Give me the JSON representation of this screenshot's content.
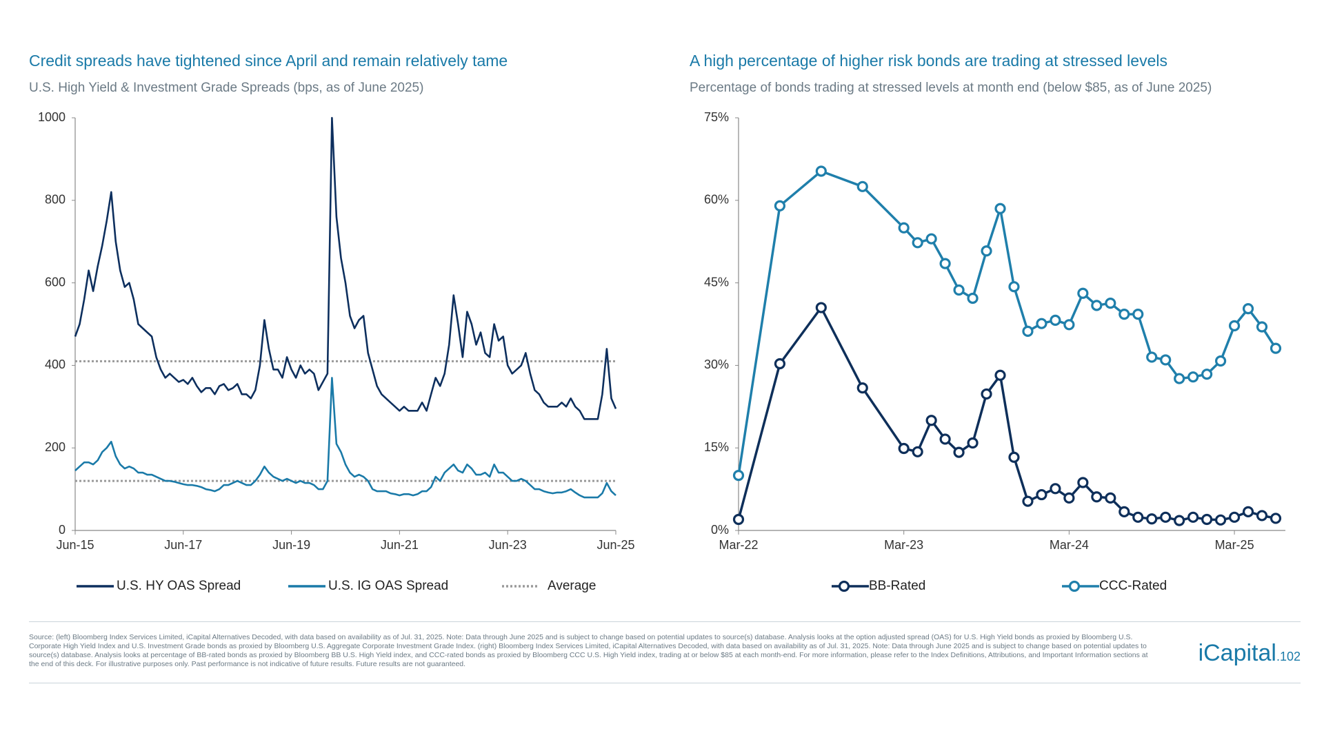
{
  "chart_data": [
    {
      "type": "line",
      "title": "Credit spreads have tightened since April and remain relatively tame",
      "subtitle": "U.S. High Yield & Investment Grade Spreads (bps, as of June 2025)",
      "x": [
        "Jun-15",
        "Jul-15",
        "Aug-15",
        "Sep-15",
        "Oct-15",
        "Nov-15",
        "Dec-15",
        "Jan-16",
        "Feb-16",
        "Mar-16",
        "Apr-16",
        "May-16",
        "Jun-16",
        "Jul-16",
        "Aug-16",
        "Sep-16",
        "Oct-16",
        "Nov-16",
        "Dec-16",
        "Jan-17",
        "Feb-17",
        "Mar-17",
        "Apr-17",
        "May-17",
        "Jun-17",
        "Jul-17",
        "Aug-17",
        "Sep-17",
        "Oct-17",
        "Nov-17",
        "Dec-17",
        "Jan-18",
        "Feb-18",
        "Mar-18",
        "Apr-18",
        "May-18",
        "Jun-18",
        "Jul-18",
        "Aug-18",
        "Sep-18",
        "Oct-18",
        "Nov-18",
        "Dec-18",
        "Jan-19",
        "Feb-19",
        "Mar-19",
        "Apr-19",
        "May-19",
        "Jun-19",
        "Jul-19",
        "Aug-19",
        "Sep-19",
        "Oct-19",
        "Nov-19",
        "Dec-19",
        "Jan-20",
        "Feb-20",
        "Mar-20",
        "Apr-20",
        "May-20",
        "Jun-20",
        "Jul-20",
        "Aug-20",
        "Sep-20",
        "Oct-20",
        "Nov-20",
        "Dec-20",
        "Jan-21",
        "Feb-21",
        "Mar-21",
        "Apr-21",
        "May-21",
        "Jun-21",
        "Jul-21",
        "Aug-21",
        "Sep-21",
        "Oct-21",
        "Nov-21",
        "Dec-21",
        "Jan-22",
        "Feb-22",
        "Mar-22",
        "Apr-22",
        "May-22",
        "Jun-22",
        "Jul-22",
        "Aug-22",
        "Sep-22",
        "Oct-22",
        "Nov-22",
        "Dec-22",
        "Jan-23",
        "Feb-23",
        "Mar-23",
        "Apr-23",
        "May-23",
        "Jun-23",
        "Jul-23",
        "Aug-23",
        "Sep-23",
        "Oct-23",
        "Nov-23",
        "Dec-23",
        "Jan-24",
        "Feb-24",
        "Mar-24",
        "Apr-24",
        "May-24",
        "Jun-24",
        "Jul-24",
        "Aug-24",
        "Sep-24",
        "Oct-24",
        "Nov-24",
        "Dec-24",
        "Jan-25",
        "Feb-25",
        "Mar-25",
        "Apr-25",
        "May-25",
        "Jun-25"
      ],
      "series": [
        {
          "name": "U.S. HY OAS Spread",
          "color": "#0d2f5e",
          "values": [
            470,
            500,
            560,
            630,
            580,
            640,
            690,
            750,
            820,
            700,
            630,
            590,
            600,
            560,
            500,
            490,
            480,
            470,
            420,
            390,
            370,
            380,
            370,
            360,
            365,
            355,
            370,
            350,
            335,
            345,
            345,
            330,
            350,
            355,
            340,
            345,
            355,
            330,
            330,
            320,
            340,
            400,
            510,
            440,
            390,
            390,
            370,
            420,
            390,
            370,
            400,
            380,
            390,
            380,
            340,
            360,
            380,
            1000,
            760,
            660,
            600,
            520,
            490,
            510,
            520,
            430,
            390,
            350,
            330,
            320,
            310,
            300,
            290,
            300,
            290,
            290,
            290,
            310,
            290,
            330,
            370,
            350,
            380,
            450,
            570,
            500,
            420,
            530,
            500,
            450,
            480,
            430,
            420,
            500,
            460,
            470,
            400,
            380,
            390,
            400,
            430,
            380,
            340,
            330,
            310,
            300,
            300,
            300,
            310,
            300,
            320,
            300,
            290,
            270,
            270,
            270,
            270,
            330,
            440,
            320,
            295
          ]
        },
        {
          "name": "U.S. IG OAS Spread",
          "color": "#1a7aa8",
          "values": [
            145,
            155,
            165,
            165,
            160,
            170,
            190,
            200,
            215,
            180,
            160,
            150,
            155,
            150,
            140,
            140,
            135,
            135,
            130,
            125,
            120,
            120,
            118,
            115,
            112,
            110,
            110,
            108,
            105,
            100,
            98,
            95,
            100,
            110,
            110,
            115,
            120,
            115,
            110,
            110,
            120,
            135,
            155,
            140,
            130,
            125,
            120,
            125,
            120,
            115,
            120,
            115,
            115,
            110,
            100,
            100,
            120,
            370,
            210,
            190,
            160,
            140,
            130,
            135,
            130,
            120,
            100,
            95,
            95,
            95,
            90,
            88,
            85,
            88,
            88,
            85,
            88,
            95,
            95,
            105,
            130,
            120,
            140,
            150,
            160,
            145,
            140,
            160,
            150,
            135,
            135,
            140,
            130,
            160,
            140,
            140,
            130,
            120,
            120,
            125,
            120,
            110,
            100,
            100,
            95,
            92,
            90,
            92,
            92,
            95,
            100,
            92,
            85,
            80,
            80,
            80,
            80,
            90,
            115,
            95,
            85
          ]
        }
      ],
      "reference_lines": {
        "name": "Average",
        "color": "#9a9a9a",
        "values": [
          410,
          120
        ]
      },
      "xlim": [
        "Jun-15",
        "Jun-25"
      ],
      "xticks": [
        "Jun-15",
        "Jun-17",
        "Jun-19",
        "Jun-21",
        "Jun-23",
        "Jun-25"
      ],
      "ylim": [
        0,
        1000
      ],
      "yticks": [
        0,
        200,
        400,
        600,
        800,
        1000
      ],
      "grid": false,
      "markers": false
    },
    {
      "type": "line",
      "title": "A high percentage of higher risk bonds are trading at stressed levels",
      "subtitle": "Percentage of bonds trading at stressed levels at month end (below $85, as of June 2025)",
      "x": [
        "Mar-22",
        "Jun-22",
        "Sep-22",
        "Dec-22",
        "Mar-23",
        "Apr-23",
        "May-23",
        "Jun-23",
        "Jul-23",
        "Aug-23",
        "Sep-23",
        "Oct-23",
        "Nov-23",
        "Dec-23",
        "Jan-24",
        "Feb-24",
        "Mar-24",
        "Apr-24",
        "May-24",
        "Jun-24",
        "Jul-24",
        "Aug-24",
        "Sep-24",
        "Oct-24",
        "Nov-24",
        "Dec-24",
        "Jan-25",
        "Feb-25",
        "Mar-25",
        "Apr-25",
        "May-25",
        "Jun-25"
      ],
      "series": [
        {
          "name": "BB-Rated",
          "color": "#0e2f5a",
          "values": [
            2,
            30.3,
            40.5,
            25.9,
            14.9,
            14.3,
            20,
            16.6,
            14.2,
            15.9,
            24.8,
            28.2,
            13.3,
            5.3,
            6.5,
            7.6,
            5.9,
            8.7,
            6.1,
            5.9,
            3.4,
            2.4,
            2.1,
            2.4,
            1.8,
            2.4,
            2.0,
            1.9,
            2.4,
            3.4,
            2.7,
            2.2
          ]
        },
        {
          "name": "CCC-Rated",
          "color": "#1f7fab",
          "values": [
            10,
            59,
            65.3,
            62.5,
            55,
            52.3,
            53,
            48.5,
            43.7,
            42.2,
            50.8,
            58.5,
            44.3,
            36.2,
            37.6,
            38.2,
            37.4,
            43.1,
            40.9,
            41.3,
            39.3,
            39.3,
            31.5,
            31,
            27.6,
            27.9,
            28.4,
            30.8,
            37.2,
            40.3,
            37,
            33.1
          ]
        }
      ],
      "xlim": [
        "Mar-22",
        "Jun-25"
      ],
      "xticks": [
        "Mar-22",
        "Mar-23",
        "Mar-24",
        "Mar-25"
      ],
      "ylim": [
        0,
        75
      ],
      "yticks": [
        {
          "value": 0,
          "label": "0%"
        },
        {
          "value": 15,
          "label": "15%"
        },
        {
          "value": 30,
          "label": "30%"
        },
        {
          "value": 45,
          "label": "45%"
        },
        {
          "value": 60,
          "label": "60%"
        },
        {
          "value": 75,
          "label": "75%"
        }
      ],
      "grid": false,
      "markers": true
    }
  ],
  "footer": {
    "source": "Source: (left) Bloomberg Index Services Limited, iCapital Alternatives Decoded, with data based on availability as of Jul. 31, 2025. Note: Data through June 2025 and is subject to change based on potential updates to source(s) database. Analysis looks at the option adjusted spread (OAS) for U.S. High Yield bonds as proxied by Bloomberg U.S. Corporate High Yield Index and U.S. Investment Grade bonds as proxied by Bloomberg U.S. Aggregate Corporate Investment Grade Index. (right) Bloomberg Index Services Limited, iCapital Alternatives Decoded, with data based on availability as of Jul. 31, 2025. Note: Data through June 2025 and is subject to change based on potential updates to source(s) database. Analysis looks at percentage of BB-rated bonds as proxied by Bloomberg BB U.S. High Yield index, and CCC-rated bonds as proxied by Bloomberg CCC U.S. High Yield index, trading at or below $85 at each month-end. For more information, please refer to the Index Definitions, Attributions, and Important Information sections at the end of this deck. For illustrative purposes only. Past performance is not indicative of future results. Future results are not guaranteed.",
    "logo": "iCapital",
    "logo_suffix": ".102"
  }
}
